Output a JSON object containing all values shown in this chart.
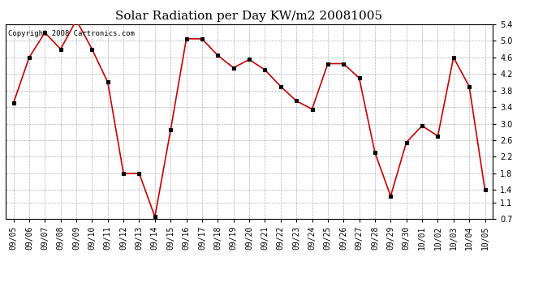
{
  "title": "Solar Radiation per Day KW/m2 20081005",
  "copyright_text": "Copyright 2008 Cartronics.com",
  "dates": [
    "09/05",
    "09/06",
    "09/07",
    "09/08",
    "09/09",
    "09/10",
    "09/11",
    "09/12",
    "09/13",
    "09/14",
    "09/15",
    "09/16",
    "09/17",
    "09/18",
    "09/19",
    "09/20",
    "09/21",
    "09/22",
    "09/23",
    "09/24",
    "09/25",
    "09/26",
    "09/27",
    "09/28",
    "09/29",
    "09/30",
    "10/01",
    "10/02",
    "10/03",
    "10/04",
    "10/05"
  ],
  "values": [
    3.5,
    4.6,
    5.2,
    4.8,
    5.5,
    4.8,
    4.0,
    1.8,
    1.8,
    0.75,
    2.85,
    5.05,
    5.05,
    4.65,
    4.35,
    4.55,
    4.3,
    3.9,
    3.55,
    3.35,
    4.45,
    4.45,
    4.1,
    2.3,
    1.25,
    2.55,
    2.95,
    2.7,
    4.6,
    3.9,
    1.4
  ],
  "line_color": "#cc0000",
  "marker_color": "#000000",
  "marker_size": 3,
  "background_color": "#ffffff",
  "grid_color": "#aaaaaa",
  "ylim": [
    0.7,
    5.4
  ],
  "yticks": [
    0.7,
    1.1,
    1.4,
    1.8,
    2.2,
    2.6,
    3.0,
    3.4,
    3.8,
    4.2,
    4.6,
    5.0,
    5.4
  ],
  "title_fontsize": 11,
  "tick_fontsize": 7,
  "copyright_fontsize": 6.5,
  "figwidth": 6.9,
  "figheight": 3.75,
  "dpi": 100
}
